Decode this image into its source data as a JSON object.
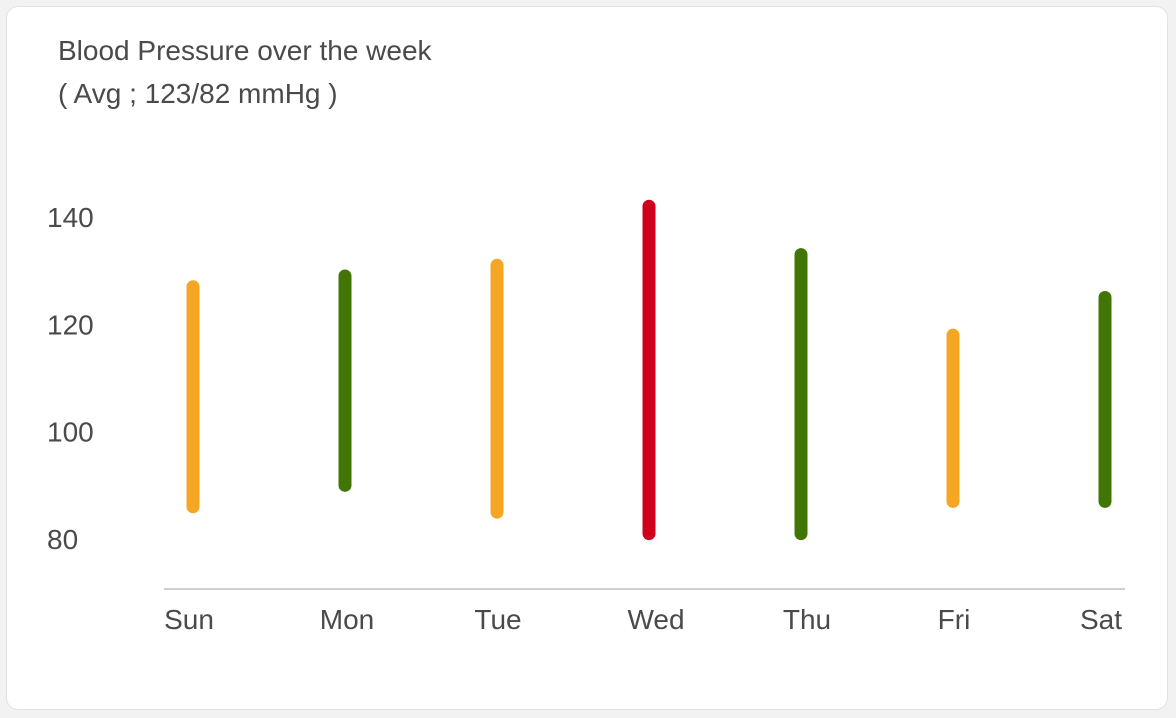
{
  "header": {
    "title": "Blood Pressure over the week",
    "subtitle": "( Avg ; 123/82 mmHg )"
  },
  "chart_data": {
    "type": "range-bar",
    "title": "Blood Pressure over the week",
    "subtitle": "( Avg ; 123/82 mmHg )",
    "xlabel": "",
    "ylabel": "",
    "categories": [
      "Sun",
      "Mon",
      "Tue",
      "Wed",
      "Thu",
      "Fri",
      "Sat"
    ],
    "y_ticks": [
      80,
      100,
      120,
      140
    ],
    "ylim": [
      70,
      148
    ],
    "grid": false,
    "legend": "none",
    "series": [
      {
        "low": [
          86,
          90,
          85,
          81,
          81,
          87,
          87
        ],
        "high": [
          127,
          129,
          131,
          142,
          133,
          118,
          125
        ],
        "colors": [
          "#f5a623",
          "#417505",
          "#f5a623",
          "#d0021b",
          "#417505",
          "#f5a623",
          "#417505"
        ]
      }
    ],
    "axis_color": "#d0d0d0"
  }
}
